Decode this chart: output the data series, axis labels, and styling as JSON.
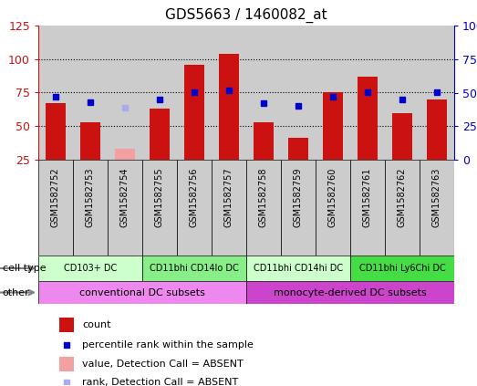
{
  "title": "GDS5663 / 1460082_at",
  "samples": [
    "GSM1582752",
    "GSM1582753",
    "GSM1582754",
    "GSM1582755",
    "GSM1582756",
    "GSM1582757",
    "GSM1582758",
    "GSM1582759",
    "GSM1582760",
    "GSM1582761",
    "GSM1582762",
    "GSM1582763"
  ],
  "bar_values": [
    67,
    53,
    null,
    63,
    96,
    104,
    53,
    41,
    75,
    87,
    60,
    70
  ],
  "bar_absent_values": [
    null,
    null,
    33,
    null,
    null,
    null,
    null,
    null,
    null,
    null,
    null,
    null
  ],
  "dot_values": [
    47,
    43,
    null,
    45,
    50,
    52,
    42,
    40,
    47,
    50,
    45,
    50
  ],
  "dot_absent_values": [
    null,
    null,
    39,
    null,
    null,
    null,
    null,
    null,
    null,
    null,
    null,
    null
  ],
  "ylim_left": [
    25,
    125
  ],
  "ylim_right": [
    0,
    100
  ],
  "yticks_left": [
    25,
    50,
    75,
    100,
    125
  ],
  "ytick_labels_left": [
    "25",
    "50",
    "75",
    "100",
    "125"
  ],
  "yticks_right": [
    0,
    25,
    50,
    75,
    100
  ],
  "ytick_labels_right": [
    "0",
    "25",
    "50",
    "75",
    "100%"
  ],
  "bar_color": "#cc1111",
  "bar_absent_color": "#f4a0a0",
  "dot_color": "#0000cc",
  "dot_absent_color": "#aaaaee",
  "bg_color": "#cccccc",
  "cell_type_groups": [
    {
      "label": "CD103+ DC",
      "start": 0,
      "end": 2,
      "color": "#ccffcc"
    },
    {
      "label": "CD11bhi CD14lo DC",
      "start": 3,
      "end": 5,
      "color": "#88ee88"
    },
    {
      "label": "CD11bhi CD14hi DC",
      "start": 6,
      "end": 8,
      "color": "#ccffcc"
    },
    {
      "label": "CD11bhi Ly6Chi DC",
      "start": 9,
      "end": 11,
      "color": "#44dd44"
    }
  ],
  "other_groups": [
    {
      "label": "conventional DC subsets",
      "start": 0,
      "end": 5,
      "color": "#ee88ee"
    },
    {
      "label": "monocyte-derived DC subsets",
      "start": 6,
      "end": 11,
      "color": "#cc44cc"
    }
  ],
  "cell_type_label": "cell type",
  "other_label": "other",
  "legend_items": [
    {
      "label": "count",
      "color": "#cc1111",
      "type": "bar"
    },
    {
      "label": "percentile rank within the sample",
      "color": "#0000cc",
      "type": "dot"
    },
    {
      "label": "value, Detection Call = ABSENT",
      "color": "#f4a0a0",
      "type": "bar"
    },
    {
      "label": "rank, Detection Call = ABSENT",
      "color": "#aaaaee",
      "type": "dot"
    }
  ]
}
